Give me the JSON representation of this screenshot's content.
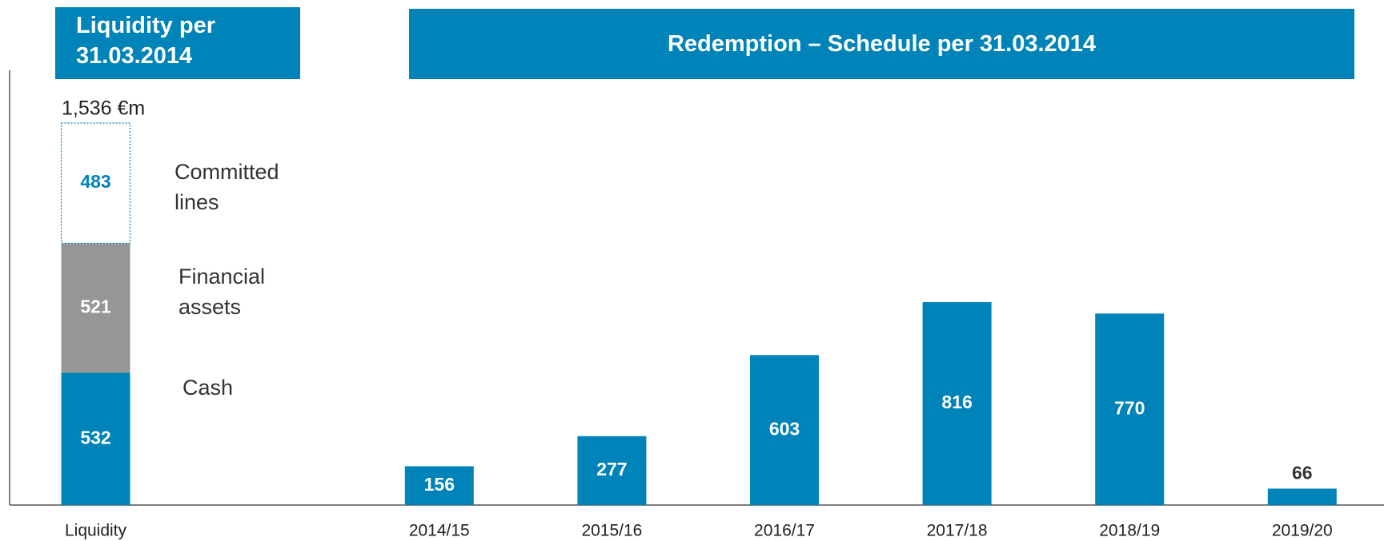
{
  "chart_data": [
    {
      "type": "stacked_bar",
      "title": "Liquidity per 31.03.2014",
      "categories": [
        "Liquidity"
      ],
      "series": [
        {
          "name": "Cash",
          "color": "#0083b8",
          "values": [
            532
          ]
        },
        {
          "name": "Financial assets",
          "color": "#969696",
          "values": [
            521
          ]
        },
        {
          "name": "Committed lines",
          "color": "#ffffff",
          "values": [
            483
          ]
        }
      ],
      "total": 1536,
      "total_label": "1,536 €m"
    },
    {
      "type": "bar",
      "title": "Redemption – Schedule per 31.03.2014",
      "categories": [
        "2014/15",
        "2015/16",
        "2016/17",
        "2017/18",
        "2018/19",
        "2019/20"
      ],
      "values": [
        156,
        277,
        603,
        816,
        770,
        66
      ],
      "color": "#0083b8"
    }
  ]
}
